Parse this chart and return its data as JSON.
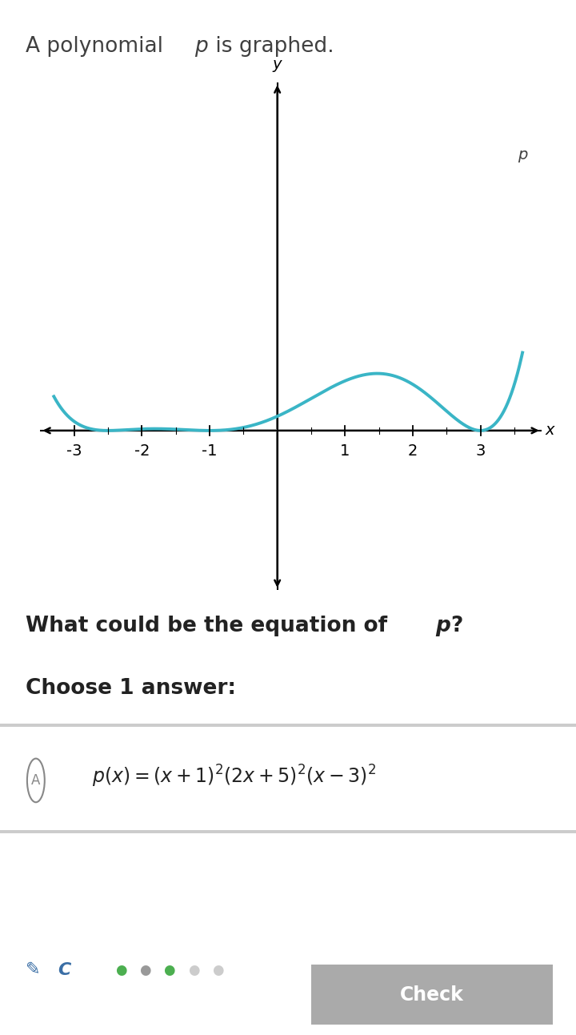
{
  "curve_color": "#3ab5c6",
  "axis_color": "#000000",
  "bg_color": "#ffffff",
  "text_color": "#404040",
  "dark_text": "#222222",
  "x_ticks": [
    -3,
    -2,
    -1,
    1,
    2,
    3
  ],
  "x_label": "x",
  "y_label": "y",
  "x_range": [
    -3.5,
    3.9
  ],
  "y_range": [
    -2.2,
    4.8
  ],
  "curve_linewidth": 2.8,
  "graph_label": "p",
  "scale": 0.000875,
  "title": "A polynomial ",
  "title_italic": "p",
  "title_end": " is graphed.",
  "question": "What could be the equation of ",
  "question_italic": "p",
  "question_end": "?",
  "choose": "Choose 1 answer:",
  "answer_circle_color": "#888888",
  "divider_color": "#cccccc",
  "check_bg": "#aaaaaa",
  "check_text": "Check",
  "dots_colors": [
    "#4caf50",
    "#999999",
    "#4caf50",
    "#cccccc",
    "#cccccc"
  ]
}
